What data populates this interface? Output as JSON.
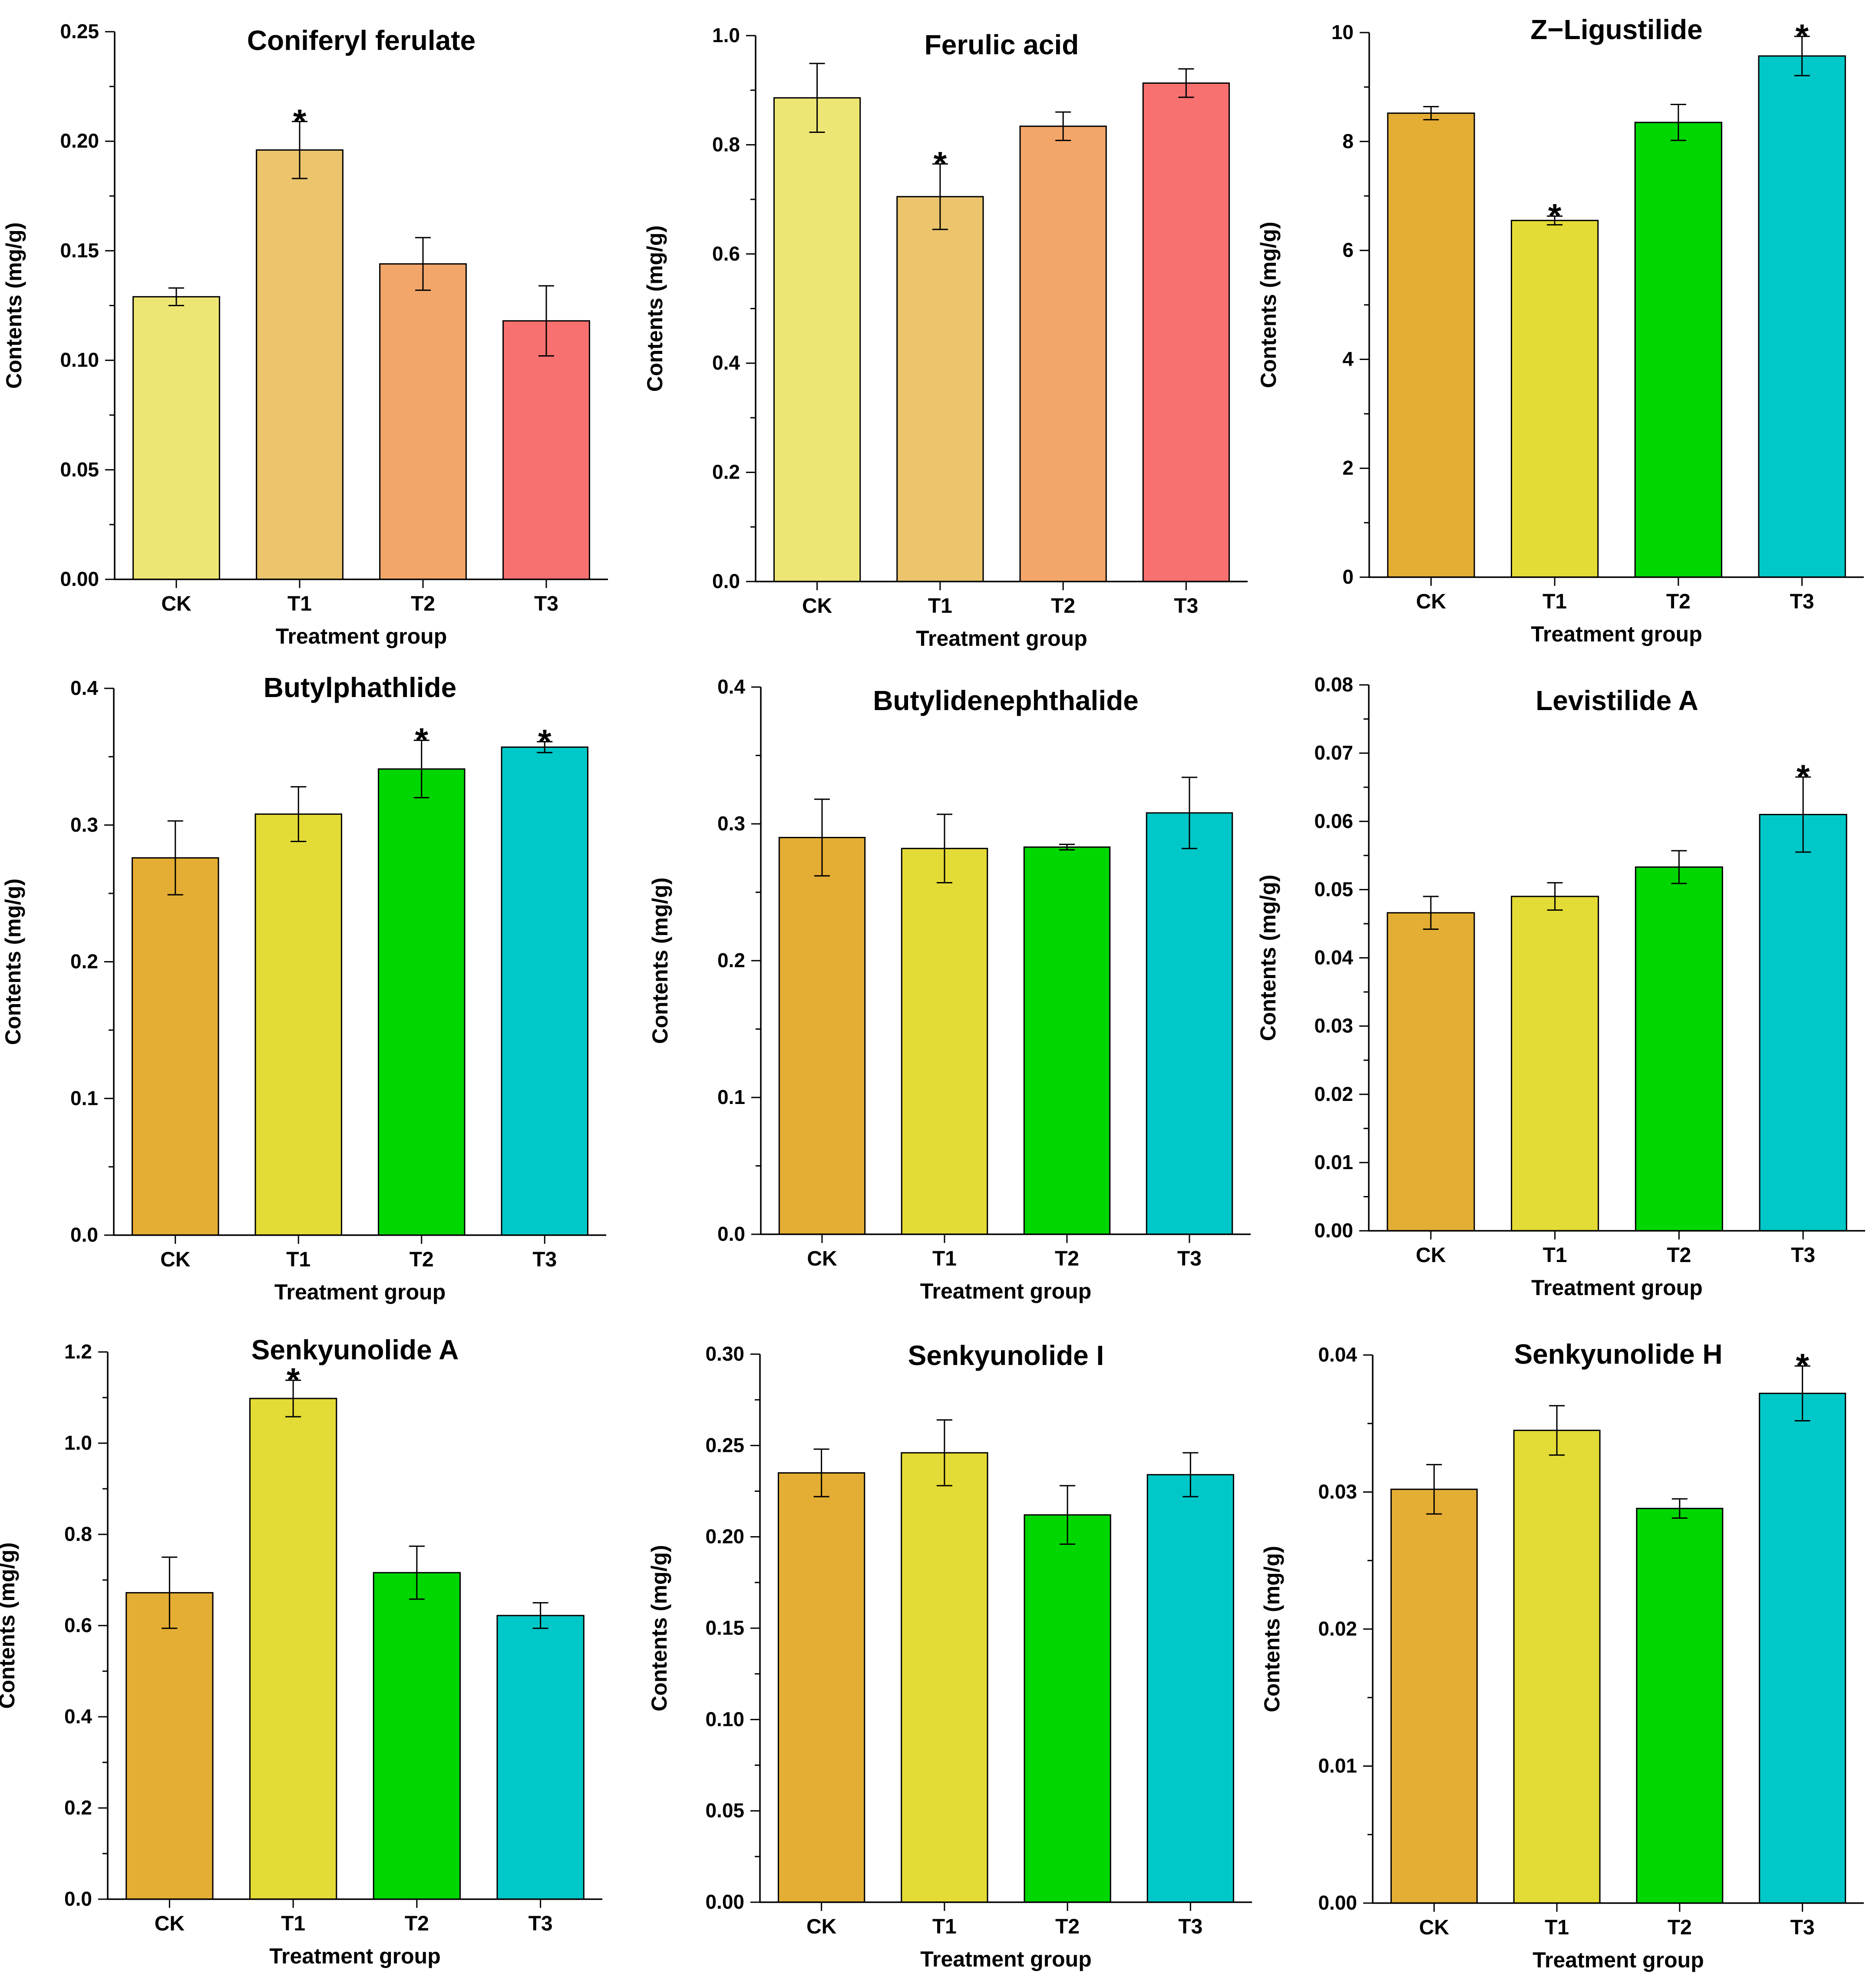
{
  "chart_data": [
    {
      "type": "bar",
      "title": "Coniferyl ferulate",
      "xlabel": "Treatment group",
      "ylabel": "Contents (mg/g)",
      "categories": [
        "CK",
        "T1",
        "T2",
        "T3"
      ],
      "values": [
        0.129,
        0.196,
        0.144,
        0.118
      ],
      "errors": [
        0.004,
        0.013,
        0.012,
        0.016
      ],
      "significant": [
        false,
        true,
        false,
        false
      ],
      "ylim": [
        0,
        0.25
      ],
      "yticks": [
        "0.00",
        "0.05",
        "0.10",
        "0.15",
        "0.20",
        "0.25"
      ],
      "colors": [
        "#ede674",
        "#ebc46c",
        "#f3a66a",
        "#f87170"
      ],
      "significance_marker": "*"
    },
    {
      "type": "bar",
      "title": "Ferulic acid",
      "xlabel": "Treatment group",
      "ylabel": "Contents (mg/g)",
      "categories": [
        "CK",
        "T1",
        "T2",
        "T3"
      ],
      "values": [
        0.886,
        0.705,
        0.834,
        0.913
      ],
      "errors": [
        0.063,
        0.06,
        0.026,
        0.026
      ],
      "significant": [
        false,
        true,
        false,
        false
      ],
      "ylim": [
        0,
        1.0
      ],
      "yticks": [
        "0.0",
        "0.2",
        "0.4",
        "0.6",
        "0.8",
        "1.0"
      ],
      "colors": [
        "#ede674",
        "#ebc46c",
        "#f3a66a",
        "#f87170"
      ],
      "significance_marker": "*"
    },
    {
      "type": "bar",
      "title": "Z−Ligustilide",
      "xlabel": "Treatment group",
      "ylabel": "Contents (mg/g)",
      "categories": [
        "CK",
        "T1",
        "T2",
        "T3"
      ],
      "values": [
        8.52,
        6.55,
        8.35,
        9.57
      ],
      "errors": [
        0.12,
        0.08,
        0.33,
        0.36
      ],
      "significant": [
        false,
        true,
        false,
        true
      ],
      "ylim": [
        0,
        10
      ],
      "yticks": [
        "0",
        "2",
        "4",
        "6",
        "8",
        "10"
      ],
      "colors": [
        "#e4ad33",
        "#e3db36",
        "#00d600",
        "#00c8c8"
      ],
      "significance_marker": "*"
    },
    {
      "type": "bar",
      "title": "Butylphathlide",
      "xlabel": "Treatment group",
      "ylabel": "Contents (mg/g)",
      "categories": [
        "CK",
        "T1",
        "T2",
        "T3"
      ],
      "values": [
        0.276,
        0.308,
        0.341,
        0.357
      ],
      "errors": [
        0.027,
        0.02,
        0.021,
        0.004
      ],
      "significant": [
        false,
        false,
        true,
        true
      ],
      "ylim": [
        0,
        0.4
      ],
      "yticks": [
        "0.0",
        "0.1",
        "0.2",
        "0.3",
        "0.4"
      ],
      "colors": [
        "#e4ad33",
        "#e3db36",
        "#00d600",
        "#00c8c8"
      ],
      "significance_marker": "*"
    },
    {
      "type": "bar",
      "title": "Butylidenephthalide",
      "xlabel": "Treatment group",
      "ylabel": "Contents (mg/g)",
      "categories": [
        "CK",
        "T1",
        "T2",
        "T3"
      ],
      "values": [
        0.29,
        0.282,
        0.283,
        0.308
      ],
      "errors": [
        0.028,
        0.025,
        0.002,
        0.026
      ],
      "significant": [
        false,
        false,
        false,
        false
      ],
      "ylim": [
        0,
        0.4
      ],
      "yticks": [
        "0.0",
        "0.1",
        "0.2",
        "0.3",
        "0.4"
      ],
      "colors": [
        "#e4ad33",
        "#e3db36",
        "#00d600",
        "#00c8c8"
      ],
      "significance_marker": "*"
    },
    {
      "type": "bar",
      "title": "Levistilide A",
      "xlabel": "Treatment group",
      "ylabel": "Contents (mg/g)",
      "categories": [
        "CK",
        "T1",
        "T2",
        "T3"
      ],
      "values": [
        0.0466,
        0.049,
        0.0533,
        0.061
      ],
      "errors": [
        0.0024,
        0.002,
        0.0024,
        0.0055
      ],
      "significant": [
        false,
        false,
        false,
        true
      ],
      "ylim": [
        0,
        0.08
      ],
      "yticks": [
        "0.00",
        "0.01",
        "0.02",
        "0.03",
        "0.04",
        "0.05",
        "0.06",
        "0.07",
        "0.08"
      ],
      "colors": [
        "#e4ad33",
        "#e3db36",
        "#00d600",
        "#00c8c8"
      ],
      "significance_marker": "*"
    },
    {
      "type": "bar",
      "title": "Senkyunolide A",
      "xlabel": "Treatment group",
      "ylabel": "Contents (mg/g)",
      "categories": [
        "CK",
        "T1",
        "T2",
        "T3"
      ],
      "values": [
        0.672,
        1.098,
        0.716,
        0.622
      ],
      "errors": [
        0.078,
        0.04,
        0.058,
        0.028
      ],
      "significant": [
        false,
        true,
        false,
        false
      ],
      "ylim": [
        0,
        1.2
      ],
      "yticks": [
        "0.0",
        "0.2",
        "0.4",
        "0.6",
        "0.8",
        "1.0",
        "1.2"
      ],
      "colors": [
        "#e4ad33",
        "#e3db36",
        "#00d600",
        "#00c8c8"
      ],
      "significance_marker": "*"
    },
    {
      "type": "bar",
      "title": "Senkyunolide I",
      "xlabel": "Treatment group",
      "ylabel": "Contents (mg/g)",
      "categories": [
        "CK",
        "T1",
        "T2",
        "T3"
      ],
      "values": [
        0.235,
        0.246,
        0.212,
        0.234
      ],
      "errors": [
        0.013,
        0.018,
        0.016,
        0.012
      ],
      "significant": [
        false,
        false,
        false,
        false
      ],
      "ylim": [
        0,
        0.3
      ],
      "yticks": [
        "0.00",
        "0.05",
        "0.10",
        "0.15",
        "0.20",
        "0.25",
        "0.30"
      ],
      "colors": [
        "#e4ad33",
        "#e3db36",
        "#00d600",
        "#00c8c8"
      ],
      "significance_marker": "*"
    },
    {
      "type": "bar",
      "title": "Senkyunolide H",
      "xlabel": "Treatment group",
      "ylabel": "Contents (mg/g)",
      "categories": [
        "CK",
        "T1",
        "T2",
        "T3"
      ],
      "values": [
        0.0302,
        0.0345,
        0.0288,
        0.0372
      ],
      "errors": [
        0.0018,
        0.0018,
        0.0007,
        0.002
      ],
      "significant": [
        false,
        false,
        false,
        true
      ],
      "ylim": [
        0,
        0.04
      ],
      "yticks": [
        "0.00",
        "0.01",
        "0.02",
        "0.03",
        "0.04"
      ],
      "colors": [
        "#e4ad33",
        "#e3db36",
        "#00d600",
        "#00c8c8"
      ],
      "significance_marker": "*"
    }
  ]
}
